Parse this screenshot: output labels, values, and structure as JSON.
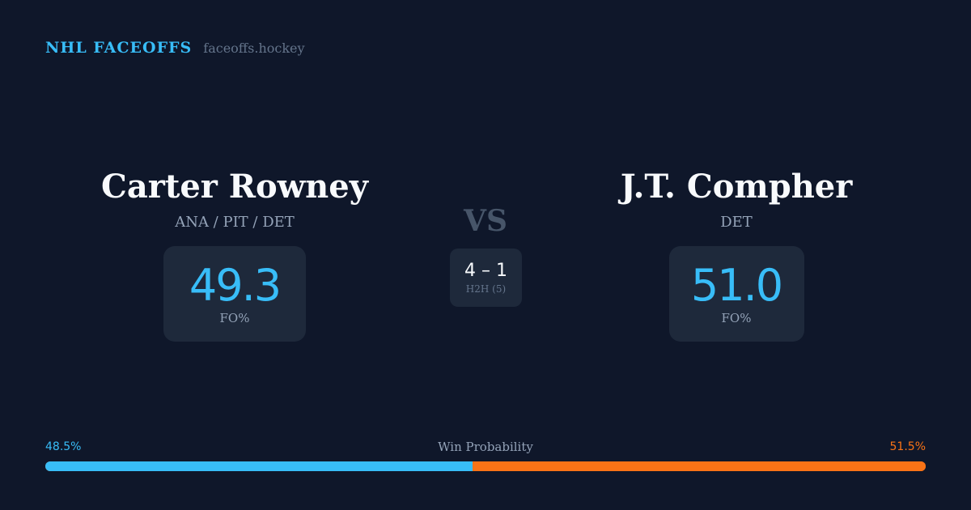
{
  "brand": {
    "name": "NHL FACEOFFS",
    "domain": "faceoffs.hockey"
  },
  "player_left": {
    "name": "Carter Rowney",
    "teams": "ANA / PIT / DET",
    "fo_value": "49.3",
    "fo_label": "FO%"
  },
  "vs_label": "VS",
  "h2h": {
    "record": "4 – 1",
    "label": "H2H (5)"
  },
  "player_right": {
    "name": "J.T. Compher",
    "teams": "DET",
    "fo_value": "51.0",
    "fo_label": "FO%"
  },
  "win_probability": {
    "title": "Win Probability",
    "left_label": "48.5%",
    "right_label": "51.5%",
    "left_value": 48.5,
    "right_value": 51.5
  },
  "colors": {
    "background": "#0f172a",
    "card": "#1e293b",
    "accent_left": "#38bdf8",
    "accent_right": "#f97316"
  }
}
